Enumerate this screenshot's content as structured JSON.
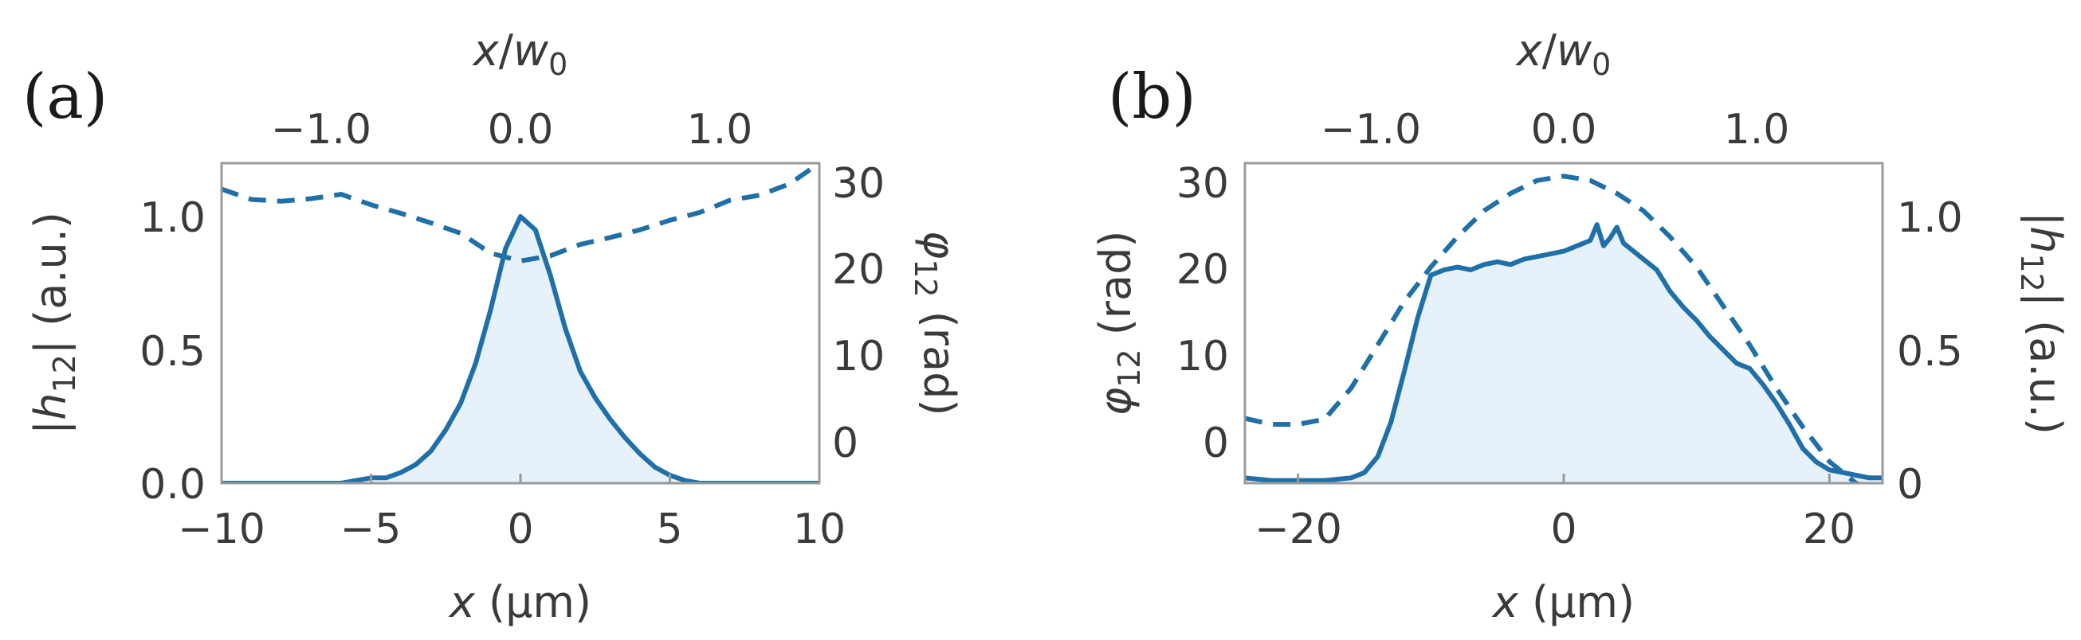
{
  "colors": {
    "line": "#1f6fa8",
    "fill": "#e6f1fa",
    "axis": "#9a9a9a",
    "text": "#3a3a3a"
  },
  "chart_data": [
    {
      "panel_label": "(a)",
      "type": "line",
      "top_axis": {
        "label_var": "x",
        "label_sep": "/",
        "label_w": "w",
        "label_sub": "0",
        "ticks": [
          "−1.0",
          "0.0",
          "1.0"
        ],
        "tick_values": [
          -1.0,
          0.0,
          1.0
        ]
      },
      "bottom_axis": {
        "label_var": "x",
        "label_unit": " (μm)",
        "ticks": [
          "−10",
          "−5",
          "0",
          "5",
          "10"
        ],
        "tick_values": [
          -10,
          -5,
          0,
          5,
          10
        ],
        "xlim": [
          -10,
          10
        ]
      },
      "left_axis": {
        "label_pre": "|",
        "label_var": "h",
        "label_sub": "12",
        "label_post": "| (a.u.)",
        "ticks": [
          "0.0",
          "0.5",
          "1.0"
        ],
        "tick_values": [
          0.0,
          0.5,
          1.0
        ],
        "ylim": [
          0,
          1.2
        ]
      },
      "right_axis": {
        "label_var": "φ",
        "label_sub": "12",
        "label_post": " (rad)",
        "ticks": [
          "0",
          "10",
          "20",
          "30"
        ],
        "tick_values": [
          0,
          10,
          20,
          30
        ],
        "ylim": [
          -5,
          32
        ]
      },
      "series": [
        {
          "style": "solid-filled",
          "axis": "left",
          "x": [
            -10,
            -8,
            -6,
            -5,
            -4.5,
            -4,
            -3.5,
            -3,
            -2.5,
            -2,
            -1.5,
            -1,
            -0.5,
            0,
            0.5,
            1,
            1.5,
            2,
            2.5,
            3,
            3.5,
            4,
            4.5,
            5,
            5.5,
            6,
            7,
            8,
            10
          ],
          "y": [
            0.0,
            0.0,
            0.0,
            0.02,
            0.02,
            0.04,
            0.07,
            0.12,
            0.2,
            0.3,
            0.45,
            0.65,
            0.88,
            1.0,
            0.95,
            0.78,
            0.58,
            0.42,
            0.32,
            0.24,
            0.17,
            0.11,
            0.06,
            0.03,
            0.01,
            0.0,
            0.0,
            0.0,
            0.0
          ]
        },
        {
          "style": "dashed",
          "axis": "right",
          "x": [
            -10,
            -9,
            -8,
            -7,
            -6,
            -5,
            -4,
            -3,
            -2,
            -1,
            0,
            1,
            2,
            3,
            4,
            5,
            6,
            7,
            8,
            9,
            10
          ],
          "y": [
            29,
            27.8,
            27.6,
            27.9,
            28.4,
            27.2,
            26.2,
            25.1,
            23.9,
            21.6,
            20.7,
            21.3,
            22.6,
            23.4,
            24.3,
            25.4,
            26.3,
            27.7,
            28.3,
            29.6,
            32
          ]
        }
      ]
    },
    {
      "panel_label": "(b)",
      "type": "line",
      "top_axis": {
        "label_var": "x",
        "label_sep": "/",
        "label_w": "w",
        "label_sub": "0",
        "ticks": [
          "−1.0",
          "0.0",
          "1.0"
        ],
        "tick_values": [
          -1.0,
          0.0,
          1.0
        ]
      },
      "bottom_axis": {
        "label_var": "x",
        "label_unit": " (μm)",
        "ticks": [
          "−20",
          "0",
          "20"
        ],
        "tick_values": [
          -20,
          0,
          20
        ],
        "xlim": [
          -24,
          24
        ]
      },
      "left_axis": {
        "label_var": "φ",
        "label_sub": "12",
        "label_post": " (rad)",
        "ticks": [
          "0",
          "10",
          "20",
          "30"
        ],
        "tick_values": [
          0,
          10,
          20,
          30
        ],
        "ylim": [
          -5,
          32
        ]
      },
      "right_axis": {
        "label_pre": "|",
        "label_var": "h",
        "label_sub": "12",
        "label_post": "| (a.u.)",
        "ticks": [
          "0",
          "0.5",
          "1.0"
        ],
        "tick_values": [
          0,
          0.5,
          1.0
        ],
        "ylim": [
          0,
          1.2
        ]
      },
      "series": [
        {
          "style": "solid-filled",
          "axis": "right",
          "x": [
            -24,
            -22,
            -20,
            -18,
            -16,
            -15,
            -14,
            -13,
            -12,
            -11,
            -10,
            -9,
            -8,
            -7,
            -6,
            -5,
            -4,
            -3,
            -2,
            -1,
            0,
            1,
            2,
            2.5,
            3,
            3.5,
            4,
            4.5,
            5,
            6,
            7,
            8,
            9,
            10,
            11,
            12,
            13,
            14,
            15,
            16,
            17,
            18,
            19,
            20,
            21,
            22,
            23,
            24
          ],
          "y": [
            0.02,
            0.01,
            0.01,
            0.01,
            0.02,
            0.04,
            0.1,
            0.23,
            0.42,
            0.62,
            0.78,
            0.8,
            0.81,
            0.8,
            0.82,
            0.83,
            0.82,
            0.84,
            0.85,
            0.86,
            0.87,
            0.89,
            0.91,
            0.97,
            0.89,
            0.92,
            0.96,
            0.9,
            0.88,
            0.84,
            0.8,
            0.72,
            0.66,
            0.61,
            0.55,
            0.5,
            0.45,
            0.43,
            0.37,
            0.3,
            0.22,
            0.13,
            0.08,
            0.05,
            0.04,
            0.03,
            0.02,
            0.02
          ]
        },
        {
          "style": "dashed",
          "axis": "left",
          "x": [
            -24,
            -22,
            -20,
            -18,
            -16,
            -14,
            -12,
            -10,
            -8,
            -6,
            -4,
            -2,
            0,
            2,
            4,
            6,
            8,
            10,
            12,
            14,
            16,
            18,
            20,
            22,
            24
          ],
          "y": [
            2.5,
            1.8,
            1.8,
            2.4,
            6,
            11,
            16,
            20,
            23.5,
            26.5,
            28.5,
            30,
            30.5,
            30,
            28.5,
            26.5,
            23.5,
            20,
            15.5,
            11,
            6,
            1.5,
            -2.5,
            -5,
            -6
          ]
        }
      ]
    }
  ]
}
